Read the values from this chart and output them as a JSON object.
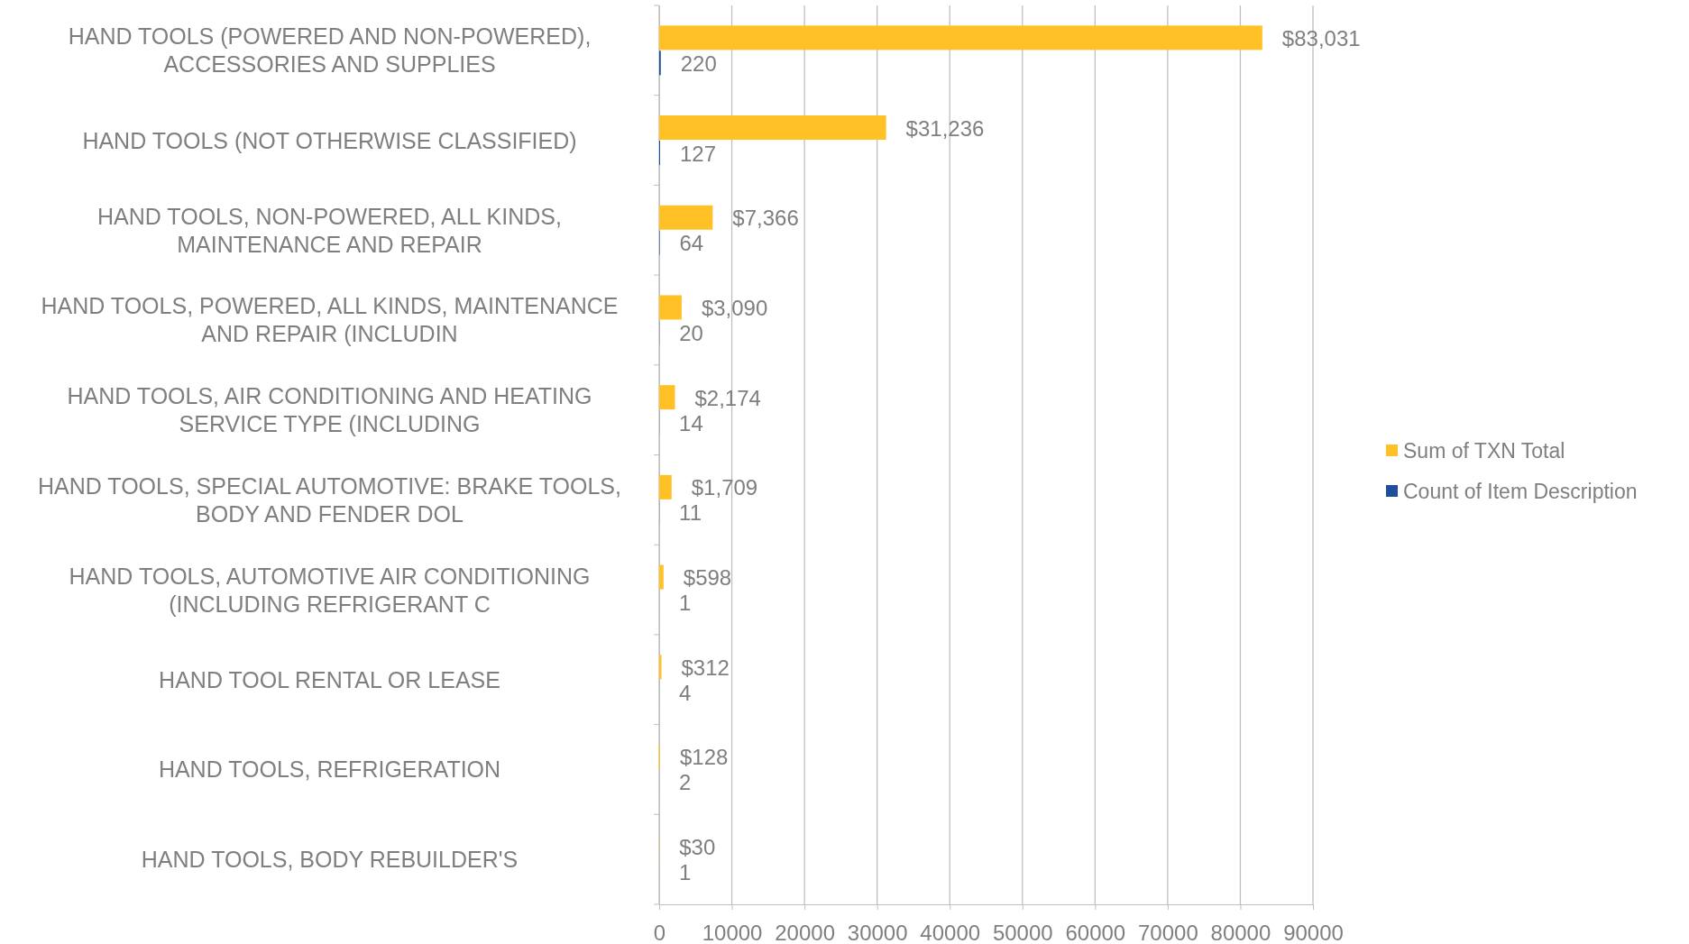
{
  "chart_data": {
    "type": "bar",
    "orientation": "horizontal",
    "categories": [
      "HAND TOOLS (POWERED AND NON-POWERED), ACCESSORIES AND SUPPLIES",
      "HAND TOOLS (NOT OTHERWISE CLASSIFIED)",
      "HAND TOOLS, NON-POWERED, ALL KINDS, MAINTENANCE AND REPAIR",
      "HAND TOOLS, POWERED, ALL KINDS, MAINTENANCE AND REPAIR (INCLUDIN",
      "HAND TOOLS, AIR CONDITIONING AND HEATING SERVICE TYPE (INCLUDING",
      "HAND TOOLS, SPECIAL AUTOMOTIVE: BRAKE TOOLS, BODY AND FENDER DOL",
      "HAND TOOLS, AUTOMOTIVE AIR CONDITIONING (INCLUDING REFRIGERANT C",
      "HAND TOOL RENTAL OR LEASE",
      "HAND TOOLS, REFRIGERATION",
      "HAND TOOLS, BODY REBUILDER'S"
    ],
    "series": [
      {
        "name": "Sum of TXN Total",
        "color": "#ffc125",
        "values": [
          83031,
          31236,
          7366,
          3090,
          2174,
          1709,
          598,
          312,
          128,
          30
        ],
        "value_labels": [
          "$83,031",
          "$31,236",
          "$7,366",
          "$3,090",
          "$2,174",
          "$1,709",
          "$598",
          "$312",
          "$128",
          "$30"
        ]
      },
      {
        "name": "Count of Item Description",
        "color": "#1f4e9c",
        "values": [
          220,
          127,
          64,
          20,
          14,
          11,
          1,
          4,
          2,
          1
        ],
        "value_labels": [
          "220",
          "127",
          "64",
          "20",
          "14",
          "11",
          "1",
          "4",
          "2",
          "1"
        ]
      }
    ],
    "xlim": [
      0,
      90000
    ],
    "xticks": [
      0,
      10000,
      20000,
      30000,
      40000,
      50000,
      60000,
      70000,
      80000,
      90000
    ],
    "grid": "x",
    "legend": "right"
  }
}
